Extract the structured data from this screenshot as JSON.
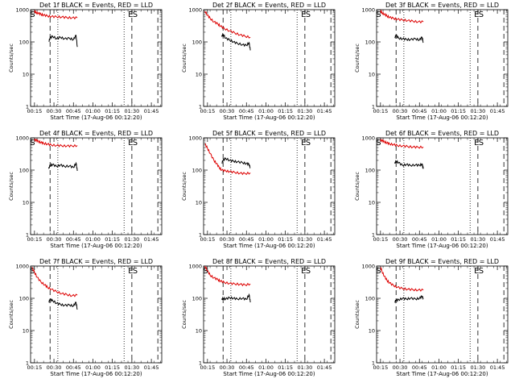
{
  "figure": {
    "ylabel": "Counts/sec",
    "xlabel": "Start Time (17-Aug-06 00:12:20)",
    "x_ticks": [
      "00:15",
      "00:30",
      "00:45",
      "01:00",
      "01:15",
      "01:30",
      "01:45"
    ],
    "y_ticks": [
      "1",
      "10",
      "100",
      "1000"
    ],
    "colors": {
      "events": "#000000",
      "lld": "#dd0000",
      "axes": "#000000"
    }
  },
  "chart_data": [
    {
      "type": "line",
      "title": "Det 1f BLACK = Events, RED = LLD",
      "x_unit": "minutes after 00:12:20",
      "xlim": [
        0,
        101
      ],
      "ylim": [
        1,
        1000
      ],
      "yscale": "log",
      "grid": false,
      "series": [
        {
          "name": "LLD",
          "x": [
            3,
            4,
            6,
            8,
            10,
            13,
            16,
            20,
            24,
            28,
            32,
            36
          ],
          "values": [
            850,
            820,
            780,
            720,
            680,
            640,
            610,
            600,
            590,
            570,
            560,
            560
          ]
        },
        {
          "name": "Events",
          "x": [
            14,
            15,
            17,
            20,
            23,
            26,
            30,
            33,
            35,
            36
          ],
          "values": [
            105,
            130,
            150,
            125,
            140,
            125,
            130,
            118,
            160,
            70
          ]
        }
      ],
      "markers": [
        {
          "label": "S",
          "x": 1.5
        },
        {
          "label": "E",
          "x": 77
        },
        {
          "label": "S",
          "x": 80.5
        }
      ]
    },
    {
      "type": "line",
      "title": "Det 2f BLACK = Events, RED = LLD",
      "x_unit": "minutes after 00:12:20",
      "xlim": [
        0,
        101
      ],
      "ylim": [
        1,
        1000
      ],
      "yscale": "log",
      "grid": false,
      "series": [
        {
          "name": "LLD",
          "x": [
            1,
            3,
            5,
            8,
            11,
            13,
            16,
            20,
            24,
            28,
            32,
            36
          ],
          "values": [
            900,
            680,
            540,
            420,
            360,
            310,
            260,
            220,
            190,
            165,
            150,
            140
          ]
        },
        {
          "name": "Events",
          "x": [
            14,
            15,
            17,
            20,
            23,
            26,
            30,
            33,
            35,
            36
          ],
          "values": [
            145,
            175,
            130,
            115,
            100,
            90,
            82,
            78,
            95,
            55
          ]
        }
      ],
      "markers": [
        {
          "label": "E",
          "x": 77
        },
        {
          "label": "S",
          "x": 80.5
        }
      ]
    },
    {
      "type": "line",
      "title": "Det 3f BLACK = Events, RED = LLD",
      "x_unit": "minutes after 00:12:20",
      "xlim": [
        0,
        101
      ],
      "ylim": [
        1,
        1000
      ],
      "yscale": "log",
      "grid": false,
      "series": [
        {
          "name": "LLD",
          "x": [
            3,
            4,
            6,
            8,
            10,
            13,
            16,
            20,
            24,
            28,
            32,
            36
          ],
          "values": [
            870,
            810,
            720,
            640,
            580,
            540,
            500,
            480,
            460,
            440,
            420,
            420
          ]
        },
        {
          "name": "Events",
          "x": [
            14,
            15,
            17,
            20,
            23,
            26,
            30,
            33,
            35,
            36
          ],
          "values": [
            140,
            160,
            130,
            125,
            120,
            118,
            125,
            115,
            140,
            95
          ]
        }
      ],
      "markers": [
        {
          "label": "S",
          "x": 1.5
        },
        {
          "label": "E",
          "x": 77
        },
        {
          "label": "S",
          "x": 80.5
        }
      ]
    },
    {
      "type": "line",
      "title": "Det 4f BLACK = Events, RED = LLD",
      "x_unit": "minutes after 00:12:20",
      "xlim": [
        0,
        101
      ],
      "ylim": [
        1,
        1000
      ],
      "yscale": "log",
      "grid": false,
      "series": [
        {
          "name": "LLD",
          "x": [
            3,
            4,
            6,
            8,
            10,
            13,
            16,
            20,
            24,
            28,
            32,
            36
          ],
          "values": [
            900,
            850,
            780,
            720,
            680,
            640,
            600,
            580,
            570,
            560,
            560,
            580
          ]
        },
        {
          "name": "Events",
          "x": [
            14,
            15,
            17,
            20,
            23,
            26,
            30,
            33,
            35,
            36
          ],
          "values": [
            110,
            140,
            150,
            130,
            145,
            130,
            135,
            120,
            165,
            95
          ]
        }
      ],
      "markers": [
        {
          "label": "S",
          "x": 1.5
        },
        {
          "label": "E",
          "x": 77
        },
        {
          "label": "S",
          "x": 80.5
        }
      ]
    },
    {
      "type": "line",
      "title": "Det 5f BLACK = Events, RED = LLD",
      "x_unit": "minutes after 00:12:20",
      "xlim": [
        0,
        101
      ],
      "ylim": [
        1,
        1000
      ],
      "yscale": "log",
      "grid": false,
      "series": [
        {
          "name": "LLD",
          "x": [
            1,
            3,
            5,
            8,
            10,
            12,
            14,
            17,
            20,
            24,
            28,
            32,
            36
          ],
          "values": [
            650,
            480,
            330,
            200,
            160,
            120,
            100,
            95,
            90,
            85,
            80,
            78,
            82
          ]
        },
        {
          "name": "Events",
          "x": [
            14,
            15,
            17,
            20,
            23,
            26,
            30,
            33,
            35,
            36
          ],
          "values": [
            170,
            200,
            230,
            200,
            190,
            180,
            170,
            160,
            150,
            120
          ]
        }
      ],
      "markers": [
        {
          "label": "E",
          "x": 77
        },
        {
          "label": "S",
          "x": 80.5
        }
      ]
    },
    {
      "type": "line",
      "title": "Det 6f BLACK = Events, RED = LLD",
      "x_unit": "minutes after 00:12:20",
      "xlim": [
        0,
        101
      ],
      "ylim": [
        1,
        1000
      ],
      "yscale": "log",
      "grid": false,
      "series": [
        {
          "name": "LLD",
          "x": [
            3,
            4,
            6,
            8,
            10,
            13,
            16,
            20,
            24,
            28,
            32,
            36
          ],
          "values": [
            880,
            820,
            760,
            700,
            650,
            620,
            580,
            560,
            540,
            520,
            510,
            520
          ]
        },
        {
          "name": "Events",
          "x": [
            14,
            15,
            17,
            20,
            23,
            26,
            30,
            33,
            35,
            36
          ],
          "values": [
            160,
            190,
            170,
            140,
            150,
            140,
            145,
            140,
            155,
            110
          ]
        }
      ],
      "markers": [
        {
          "label": "S",
          "x": 1.5
        },
        {
          "label": "E",
          "x": 77
        },
        {
          "label": "S",
          "x": 80.5
        }
      ]
    },
    {
      "type": "line",
      "title": "Det 7f BLACK = Events, RED = LLD",
      "x_unit": "minutes after 00:12:20",
      "xlim": [
        0,
        101
      ],
      "ylim": [
        1,
        1000
      ],
      "yscale": "log",
      "grid": false,
      "series": [
        {
          "name": "LLD",
          "x": [
            1,
            3,
            5,
            8,
            11,
            13,
            16,
            20,
            24,
            28,
            32,
            36
          ],
          "values": [
            900,
            650,
            450,
            320,
            260,
            220,
            190,
            160,
            140,
            130,
            120,
            125
          ]
        },
        {
          "name": "Events",
          "x": [
            14,
            15,
            17,
            20,
            23,
            26,
            30,
            33,
            35,
            36
          ],
          "values": [
            80,
            90,
            85,
            70,
            65,
            60,
            62,
            58,
            75,
            45
          ]
        }
      ],
      "markers": [
        {
          "label": "S",
          "x": 1.5
        },
        {
          "label": "E",
          "x": 77
        },
        {
          "label": "S",
          "x": 80.5
        }
      ]
    },
    {
      "type": "line",
      "title": "Det 8f BLACK = Events, RED = LLD",
      "x_unit": "minutes after 00:12:20",
      "xlim": [
        0,
        101
      ],
      "ylim": [
        1,
        1000
      ],
      "yscale": "log",
      "grid": false,
      "series": [
        {
          "name": "LLD",
          "x": [
            1,
            3,
            5,
            8,
            11,
            13,
            16,
            20,
            24,
            28,
            32,
            36
          ],
          "values": [
            1000,
            720,
            520,
            430,
            380,
            340,
            310,
            290,
            280,
            270,
            260,
            280
          ]
        },
        {
          "name": "Events",
          "x": [
            14,
            15,
            17,
            20,
            23,
            26,
            30,
            33,
            35,
            36
          ],
          "values": [
            90,
            100,
            95,
            105,
            100,
            95,
            100,
            92,
            130,
            75
          ]
        }
      ],
      "markers": [
        {
          "label": "S",
          "x": 1.5
        },
        {
          "label": "E",
          "x": 77
        },
        {
          "label": "S",
          "x": 80.5
        }
      ]
    },
    {
      "type": "line",
      "title": "Det 9f BLACK = Events, RED = LLD",
      "x_unit": "minutes after 00:12:20",
      "xlim": [
        0,
        101
      ],
      "ylim": [
        1,
        1000
      ],
      "yscale": "log",
      "grid": false,
      "series": [
        {
          "name": "LLD",
          "x": [
            3,
            4,
            6,
            8,
            10,
            13,
            16,
            20,
            24,
            28,
            32,
            36
          ],
          "values": [
            900,
            700,
            480,
            360,
            300,
            250,
            220,
            200,
            190,
            185,
            180,
            180
          ]
        },
        {
          "name": "Events",
          "x": [
            14,
            15,
            17,
            20,
            23,
            26,
            30,
            33,
            35,
            36
          ],
          "values": [
            80,
            85,
            90,
            100,
            95,
            100,
            95,
            100,
            115,
            100
          ]
        }
      ],
      "markers": [
        {
          "label": "S",
          "x": 1.5
        },
        {
          "label": "E",
          "x": 77
        },
        {
          "label": "S",
          "x": 80.5
        }
      ]
    }
  ]
}
